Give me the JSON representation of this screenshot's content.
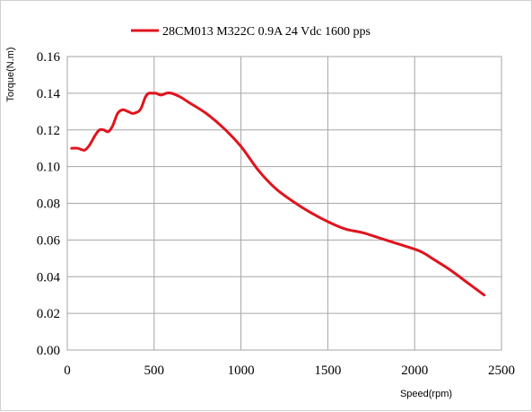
{
  "chart_data": {
    "type": "line",
    "title": "",
    "xlabel": "Speed(rpm)",
    "ylabel": "Torque(N.m)",
    "xlim": [
      0,
      2500
    ],
    "ylim": [
      0,
      0.16
    ],
    "x_ticks": [
      0,
      500,
      1000,
      1500,
      2000,
      2500
    ],
    "x_tick_labels": [
      "0",
      "500",
      "1000",
      "1500",
      "2000",
      "2500"
    ],
    "y_ticks": [
      0,
      0.02,
      0.04,
      0.06,
      0.08,
      0.1,
      0.12,
      0.14,
      0.16
    ],
    "y_tick_labels": [
      "0.00",
      "0.02",
      "0.04",
      "0.06",
      "0.08",
      "0.10",
      "0.12",
      "0.14",
      "0.16"
    ],
    "grid": true,
    "legend_position": "top-center",
    "series": [
      {
        "name": "28CM013 M322C 0.9A 24 Vdc  1600 pps",
        "color": "#e0141e",
        "x": [
          25,
          60,
          100,
          130,
          160,
          185,
          210,
          235,
          260,
          290,
          320,
          350,
          380,
          420,
          450,
          470,
          490,
          510,
          540,
          570,
          600,
          650,
          700,
          800,
          900,
          1000,
          1100,
          1200,
          1300,
          1400,
          1500,
          1600,
          1700,
          1800,
          1900,
          2000,
          2050,
          2100,
          2200,
          2300,
          2400
        ],
        "y": [
          0.11,
          0.11,
          0.109,
          0.112,
          0.117,
          0.12,
          0.12,
          0.119,
          0.122,
          0.129,
          0.131,
          0.13,
          0.129,
          0.131,
          0.138,
          0.14,
          0.14,
          0.14,
          0.139,
          0.14,
          0.14,
          0.138,
          0.135,
          0.129,
          0.121,
          0.111,
          0.098,
          0.088,
          0.081,
          0.075,
          0.07,
          0.066,
          0.064,
          0.061,
          0.058,
          0.055,
          0.053,
          0.05,
          0.044,
          0.037,
          0.03
        ]
      }
    ]
  }
}
